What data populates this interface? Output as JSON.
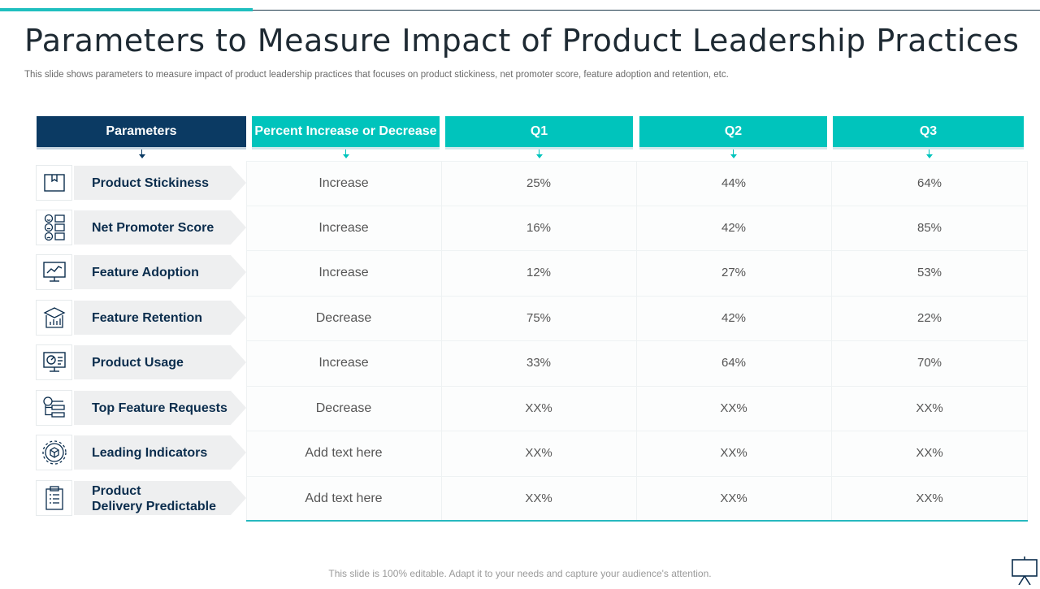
{
  "title": "Parameters to Measure Impact of Product Leadership Practices",
  "subtitle": "This slide shows parameters to measure impact of product leadership practices that focuses on product stickiness, net promoter score, feature adoption and retention, etc.",
  "colors": {
    "accent": "#00c4bc",
    "dark": "#0b3a63",
    "text": "#0b2d4d"
  },
  "table": {
    "headers": {
      "parameters": "Parameters",
      "direction": "Percent Increase or Decrease",
      "q1": "Q1",
      "q2": "Q2",
      "q3": "Q3"
    },
    "rows": [
      {
        "icon": "box-icon",
        "label": "Product Stickiness",
        "direction": "Increase",
        "q1": "25%",
        "q2": "44%",
        "q3": "64%"
      },
      {
        "icon": "feedback-faces-icon",
        "label": "Net Promoter Score",
        "direction": "Increase",
        "q1": "16%",
        "q2": "42%",
        "q3": "85%"
      },
      {
        "icon": "monitor-chart-icon",
        "label": "Feature Adoption",
        "direction": "Increase",
        "q1": "12%",
        "q2": "27%",
        "q3": "53%"
      },
      {
        "icon": "open-box-chart-icon",
        "label": "Feature Retention",
        "direction": "Decrease",
        "q1": "75%",
        "q2": "42%",
        "q3": "22%"
      },
      {
        "icon": "monitor-dashboard-icon",
        "label": "Product Usage",
        "direction": "Increase",
        "q1": "33%",
        "q2": "64%",
        "q3": "70%"
      },
      {
        "icon": "request-list-icon",
        "label": "Top Feature Requests",
        "direction": "Decrease",
        "q1": "XX%",
        "q2": "XX%",
        "q3": "XX%"
      },
      {
        "icon": "gear-cube-icon",
        "label": "Leading Indicators",
        "direction": "Add text here",
        "q1": "XX%",
        "q2": "XX%",
        "q3": "XX%"
      },
      {
        "icon": "clipboard-list-icon",
        "label_line1": "Product",
        "label_line2": "Delivery Predictable",
        "direction": "Add text here",
        "q1": "XX%",
        "q2": "XX%",
        "q3": "XX%"
      }
    ]
  },
  "footer": "This slide is 100% editable. Adapt it to your needs and capture your audience's attention."
}
